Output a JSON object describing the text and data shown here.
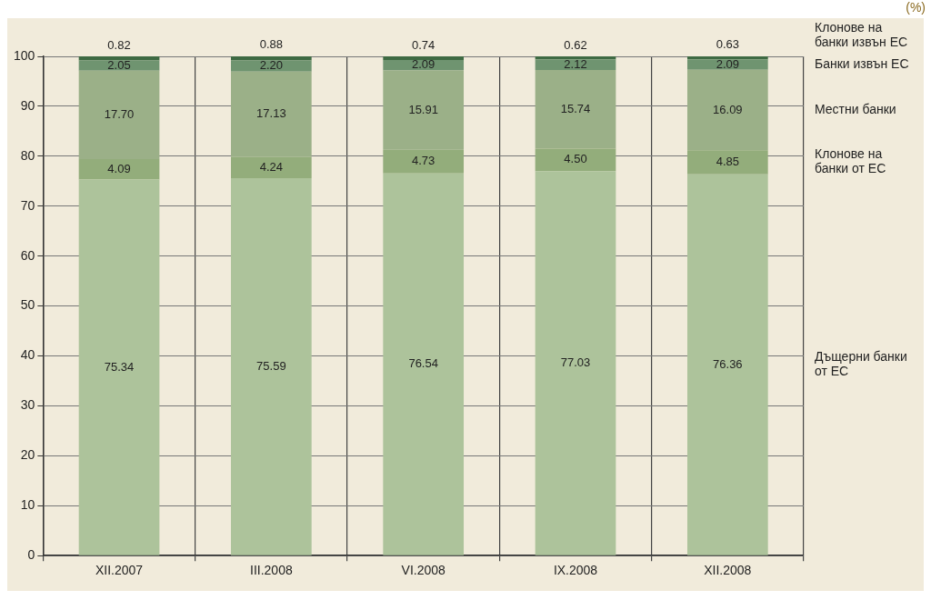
{
  "chart_data": {
    "type": "bar",
    "stacked": true,
    "categories": [
      "XII.2007",
      "III.2008",
      "VI.2008",
      "IX.2008",
      "XII.2008"
    ],
    "series": [
      {
        "name": "Дъщерни банки от ЕС",
        "color": "#adc39b",
        "values": [
          75.34,
          75.59,
          76.54,
          77.03,
          76.36
        ],
        "value_labels": [
          "75.34",
          "75.59",
          "76.54",
          "77.03",
          "76.36"
        ]
      },
      {
        "name": "Клонове на банки от ЕС",
        "color": "#93ad7b",
        "values": [
          4.09,
          4.24,
          4.73,
          4.5,
          4.85
        ],
        "value_labels": [
          "4.09",
          "4.24",
          "4.73",
          "4.50",
          "4.85"
        ]
      },
      {
        "name": "Местни банки",
        "color": "#9bb088",
        "values": [
          17.7,
          17.13,
          15.91,
          15.74,
          16.09
        ],
        "value_labels": [
          "17.70",
          "17.13",
          "15.91",
          "15.74",
          "16.09"
        ]
      },
      {
        "name": "Банки извън ЕС",
        "color": "#6f9470",
        "values": [
          2.05,
          2.2,
          2.09,
          2.12,
          2.09
        ],
        "value_labels": [
          "2.05",
          "2.20",
          "2.09",
          "2.12",
          "2.09"
        ]
      },
      {
        "name": "Клонове на банки извън ЕС",
        "color": "#3e6a43",
        "values": [
          0.82,
          0.88,
          0.74,
          0.62,
          0.63
        ],
        "value_labels": [
          "0.82",
          "0.88",
          "0.74",
          "0.62",
          "0.63"
        ]
      }
    ],
    "ylim": [
      0,
      100
    ],
    "yticks": [
      0,
      10,
      20,
      30,
      40,
      50,
      60,
      70,
      80,
      90,
      100
    ],
    "grid": "y",
    "legend": false,
    "annotations": [
      "(%)"
    ]
  }
}
